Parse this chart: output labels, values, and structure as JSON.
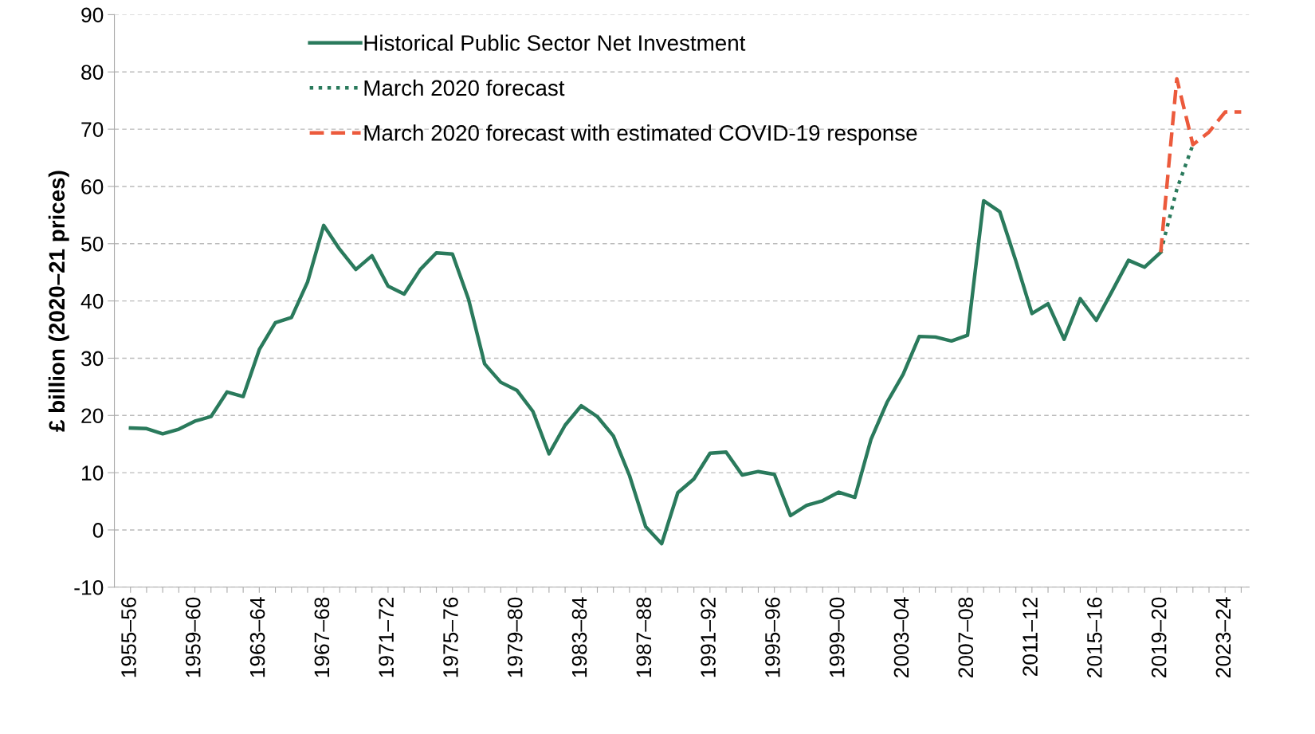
{
  "chart_data": {
    "type": "line",
    "ylabel": "£ billion (2020–21 prices)",
    "categories": [
      "1955–56",
      null,
      null,
      null,
      "1959–60",
      null,
      null,
      null,
      "1963–64",
      null,
      null,
      null,
      "1967–68",
      null,
      null,
      null,
      "1971–72",
      null,
      null,
      null,
      "1975–76",
      null,
      null,
      null,
      "1979–80",
      null,
      null,
      null,
      "1983–84",
      null,
      null,
      null,
      "1987–88",
      null,
      null,
      null,
      "1991–92",
      null,
      null,
      null,
      "1995–96",
      null,
      null,
      null,
      "1999–00",
      null,
      null,
      null,
      "2003–04",
      null,
      null,
      null,
      "2007–08",
      null,
      null,
      null,
      "2011–12",
      null,
      null,
      null,
      "2015–16",
      null,
      null,
      null,
      "2019–20",
      null,
      null,
      null,
      "2023–24",
      null
    ],
    "series": [
      {
        "name": "Historical Public Sector Net Investment",
        "color": "#2a7a5c",
        "line_style": "solid",
        "values": [
          17.8,
          17.7,
          16.8,
          17.6,
          19.0,
          19.8,
          24.1,
          23.3,
          31.5,
          36.2,
          37.1,
          43.3,
          53.2,
          49.0,
          45.5,
          47.9,
          42.6,
          41.2,
          45.5,
          48.4,
          48.2,
          40.3,
          29.0,
          25.8,
          24.4,
          20.7,
          13.3,
          18.3,
          21.7,
          19.8,
          16.4,
          9.5,
          0.6,
          -2.4,
          6.5,
          8.9,
          13.4,
          13.6,
          9.6,
          10.2,
          9.7,
          2.5,
          4.3,
          5.1,
          6.6,
          5.7,
          15.8,
          22.3,
          27.2,
          33.8,
          33.7,
          33.0,
          34.0,
          57.5,
          55.6,
          47.0,
          37.8,
          39.5,
          33.3,
          40.4,
          36.6,
          41.8,
          47.1,
          45.9,
          48.5,
          null,
          null,
          null,
          null,
          null
        ]
      },
      {
        "name": "March 2020 forecast",
        "color": "#2a7a5c",
        "line_style": "dotted",
        "values": [
          null,
          null,
          null,
          null,
          null,
          null,
          null,
          null,
          null,
          null,
          null,
          null,
          null,
          null,
          null,
          null,
          null,
          null,
          null,
          null,
          null,
          null,
          null,
          null,
          null,
          null,
          null,
          null,
          null,
          null,
          null,
          null,
          null,
          null,
          null,
          null,
          null,
          null,
          null,
          null,
          null,
          null,
          null,
          null,
          null,
          null,
          null,
          null,
          null,
          null,
          null,
          null,
          null,
          null,
          null,
          null,
          null,
          null,
          null,
          null,
          null,
          null,
          null,
          null,
          48.5,
          59.5,
          67.3,
          null,
          null,
          null
        ]
      },
      {
        "name": "March 2020 forecast with estimated COVID-19 response",
        "color": "#ec5a3c",
        "line_style": "dashed",
        "values": [
          null,
          null,
          null,
          null,
          null,
          null,
          null,
          null,
          null,
          null,
          null,
          null,
          null,
          null,
          null,
          null,
          null,
          null,
          null,
          null,
          null,
          null,
          null,
          null,
          null,
          null,
          null,
          null,
          null,
          null,
          null,
          null,
          null,
          null,
          null,
          null,
          null,
          null,
          null,
          null,
          null,
          null,
          null,
          null,
          null,
          null,
          null,
          null,
          null,
          null,
          null,
          null,
          null,
          null,
          null,
          null,
          null,
          null,
          null,
          null,
          null,
          null,
          null,
          null,
          48.5,
          78.8,
          67.3,
          69.5,
          73.0,
          73.0
        ]
      }
    ],
    "ylim": [
      -10,
      90
    ],
    "yticks": [
      -10,
      0,
      10,
      20,
      30,
      40,
      50,
      60,
      70,
      80,
      90
    ],
    "grid": "y",
    "legend": "top",
    "marker": "none"
  }
}
